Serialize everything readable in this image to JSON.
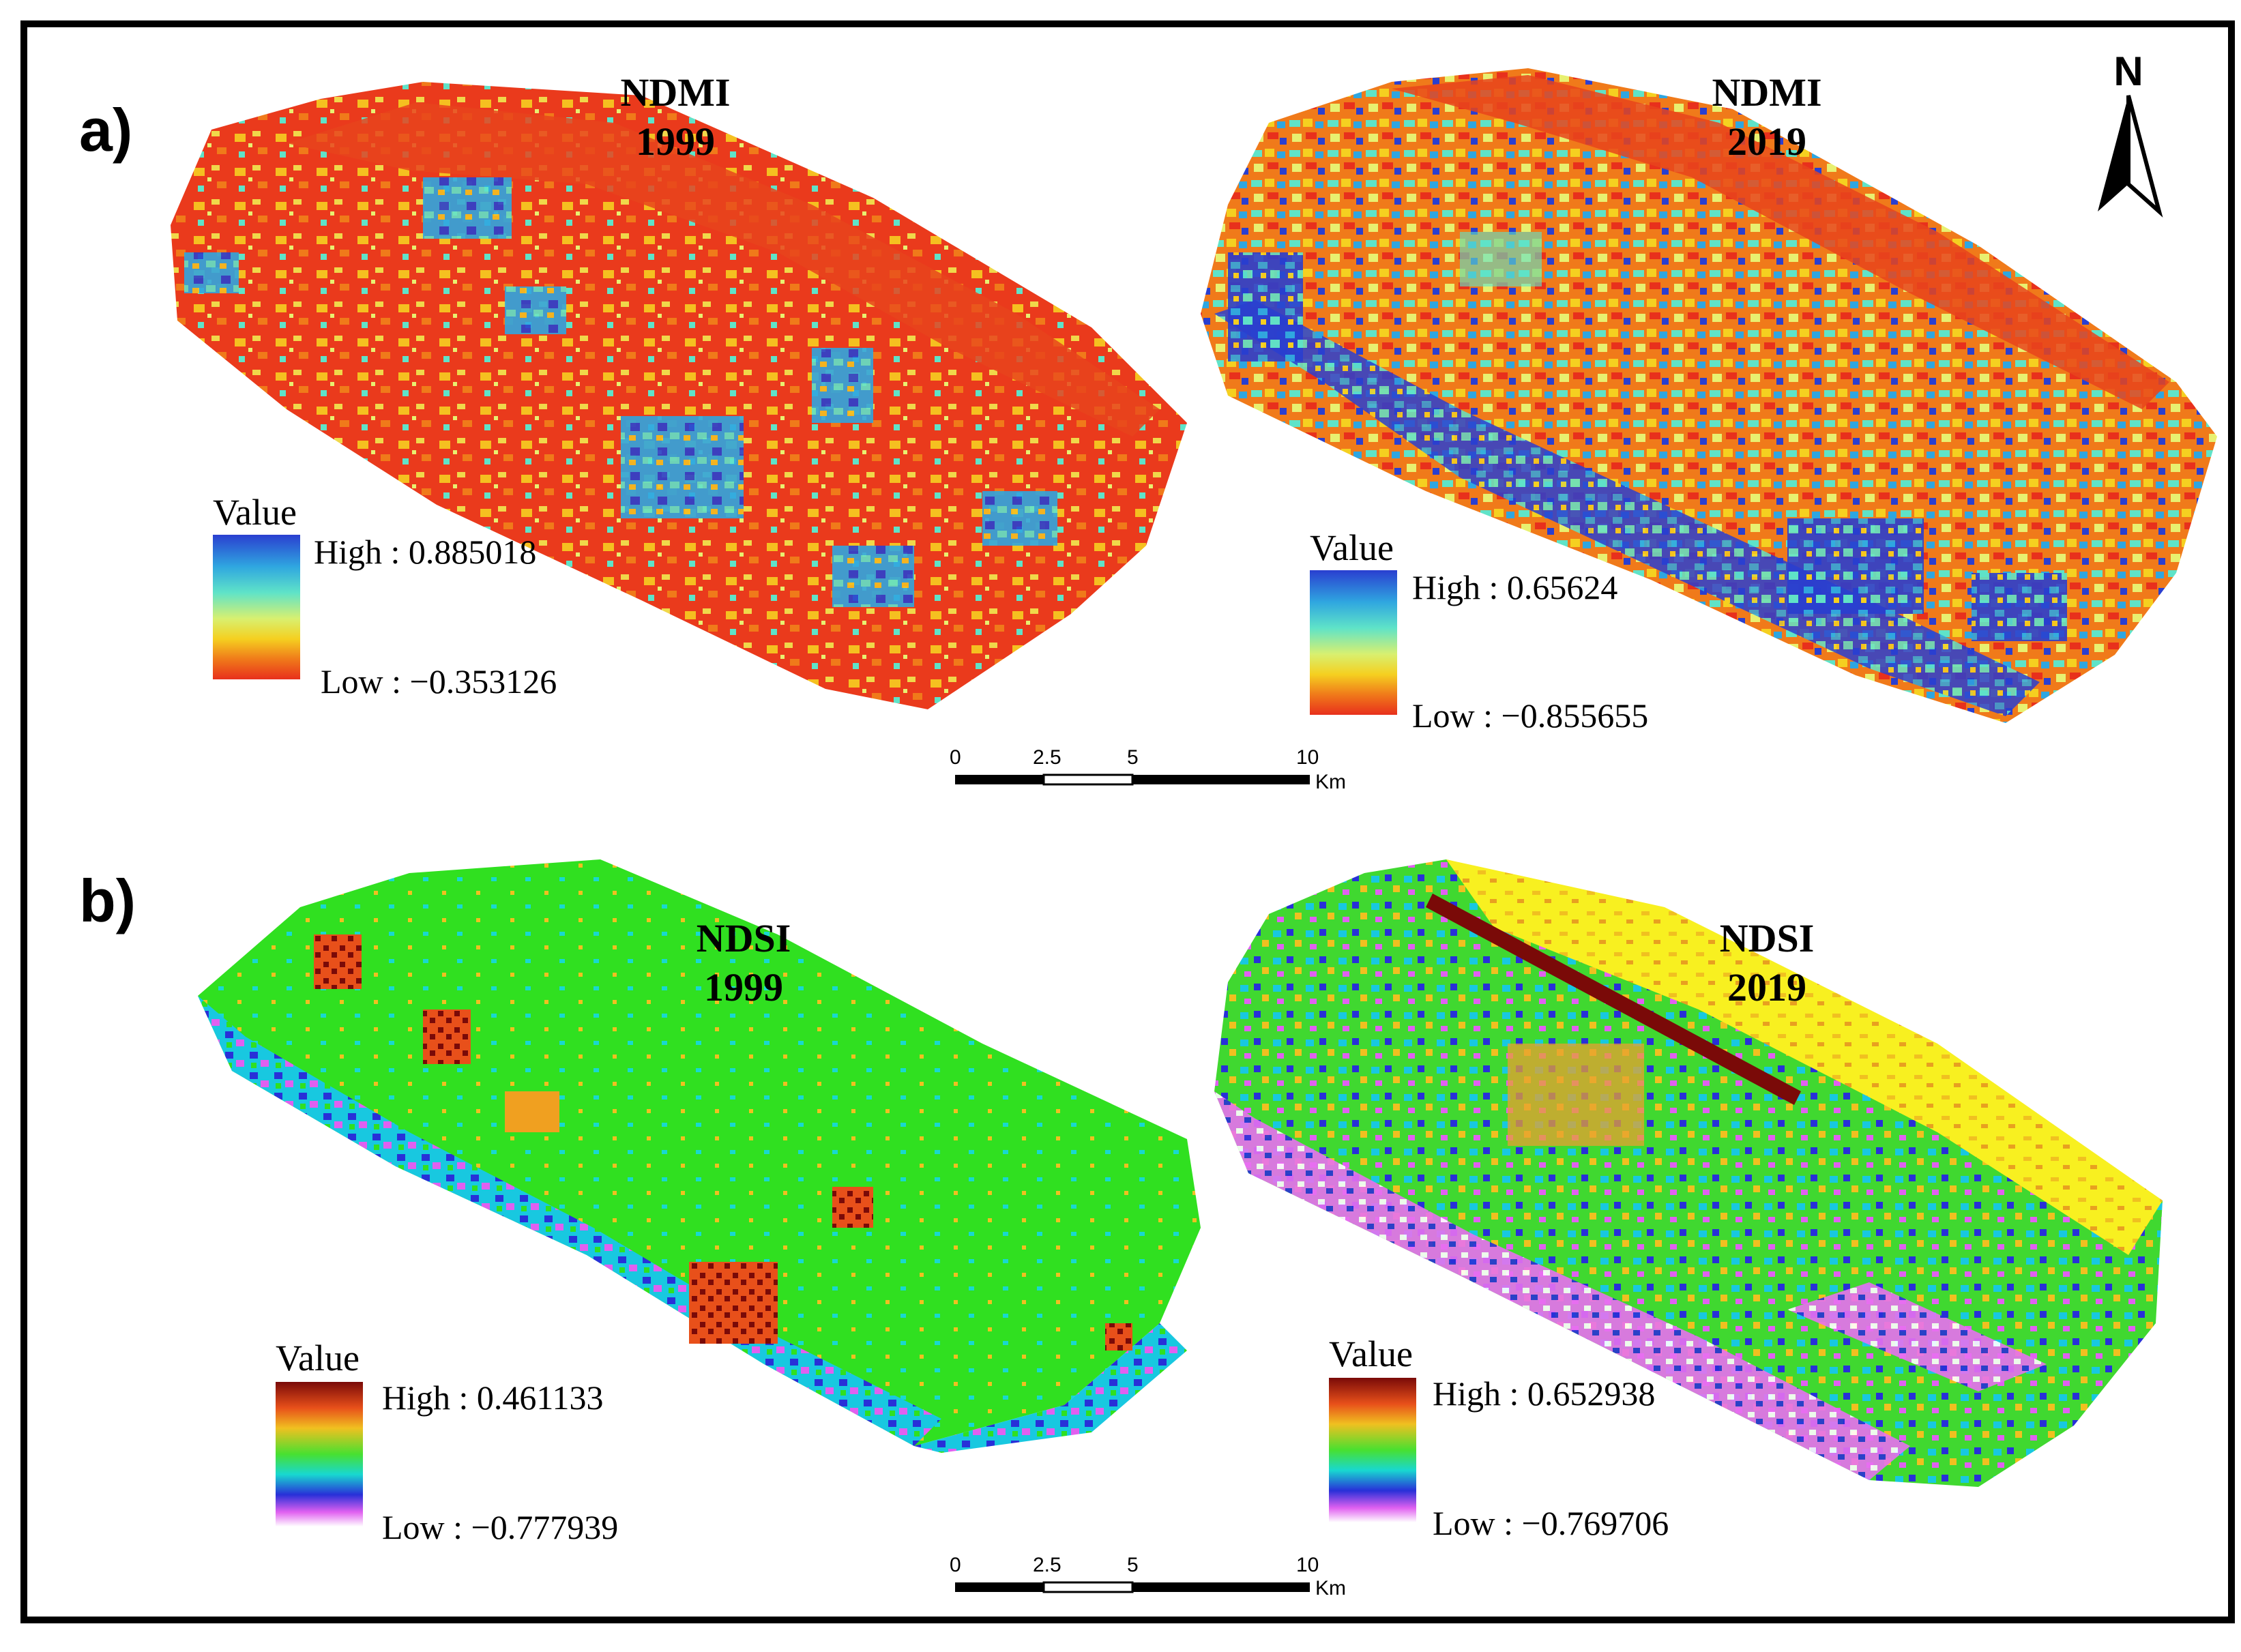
{
  "panels": [
    {
      "id": "a",
      "label": "a)",
      "maps": [
        {
          "index": "NDMI",
          "year": "1999",
          "legend": {
            "title": "Value",
            "high": "High : 0.885018",
            "low": "Low : −0.353126"
          }
        },
        {
          "index": "NDMI",
          "year": "2019",
          "legend": {
            "title": "Value",
            "high": "High : 0.65624",
            "low": "Low : −0.855655"
          }
        }
      ],
      "scale_bar": {
        "ticks": [
          "0",
          "2.5",
          "5",
          "10"
        ],
        "unit": "Km"
      }
    },
    {
      "id": "b",
      "label": "b)",
      "maps": [
        {
          "index": "NDSI",
          "year": "1999",
          "legend": {
            "title": "Value",
            "high": "High : 0.461133",
            "low": "Low : −0.777939"
          }
        },
        {
          "index": "NDSI",
          "year": "2019",
          "legend": {
            "title": "Value",
            "high": "High : 0.652938",
            "low": "Low : −0.769706"
          }
        }
      ],
      "scale_bar": {
        "ticks": [
          "0",
          "2.5",
          "5",
          "10"
        ],
        "unit": "Km"
      }
    }
  ],
  "north_arrow": {
    "label": "N"
  },
  "colors": {
    "ndmi_ramp": [
      "#2a3fd0",
      "#2fa6e0",
      "#5fe3c8",
      "#d8f070",
      "#f5d020",
      "#f07a1a",
      "#e8301c"
    ],
    "ndsi_ramp": [
      "#7a0a08",
      "#e8501a",
      "#f0c020",
      "#48e030",
      "#18d8d0",
      "#2830d8",
      "#e060f0",
      "#ffffff"
    ],
    "frame": "#000000"
  }
}
